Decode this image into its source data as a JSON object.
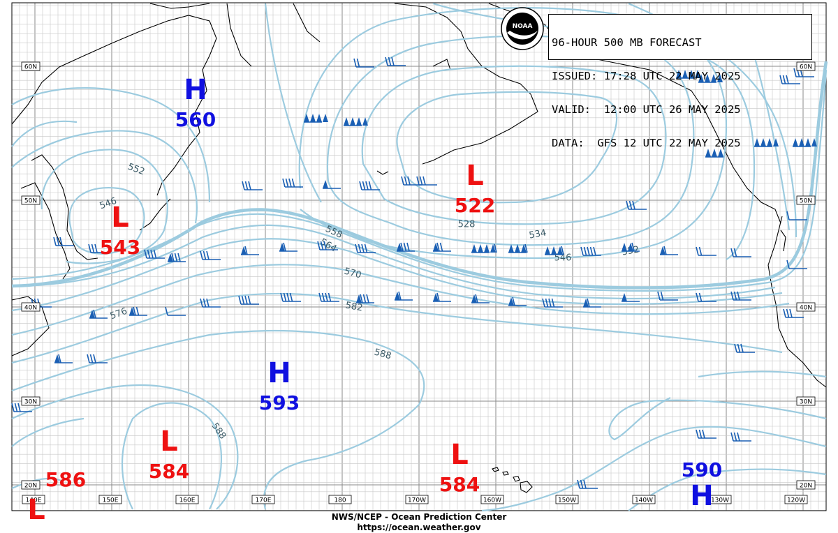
{
  "title_box": {
    "line1": "96-HOUR 500 MB FORECAST",
    "line2": "ISSUED: 17:28 UTC 22 MAY 2025",
    "line3": "VALID:  12:00 UTC 26 MAY 2025",
    "line4": "DATA:  GFS 12 UTC 22 MAY 2025"
  },
  "logo": {
    "text": "NOAA",
    "icon": "noaa-logo-icon"
  },
  "footer": {
    "line1": "NWS/NCEP - Ocean Prediction Center",
    "line2": "https://ocean.weather.gov"
  },
  "lat_labels": [
    "60N",
    "50N",
    "40N",
    "30N",
    "20N"
  ],
  "lon_labels": [
    "140E",
    "150E",
    "160E",
    "170E",
    "180",
    "170W",
    "160W",
    "150W",
    "140W",
    "130W",
    "120W"
  ],
  "contour_labels": [
    "552",
    "546",
    "558",
    "564",
    "570",
    "576",
    "582",
    "588",
    "588",
    "528",
    "534",
    "546",
    "552"
  ],
  "systems": [
    {
      "type": "H",
      "value": "560",
      "color": "#1010e0"
    },
    {
      "type": "L",
      "value": "543",
      "color": "#ee1111"
    },
    {
      "type": "L",
      "value": "522",
      "color": "#ee1111"
    },
    {
      "type": "H",
      "value": "593",
      "color": "#1010e0"
    },
    {
      "type": "L",
      "value": "584",
      "color": "#ee1111"
    },
    {
      "type": "L",
      "value": "584",
      "color": "#ee1111"
    },
    {
      "type": "H",
      "value": "590",
      "color": "#1010e0"
    },
    {
      "type": "L",
      "value": "586",
      "color": "#ee1111"
    }
  ],
  "colors": {
    "contour": "#9ccbdf",
    "wind_barb": "#1a5fb4",
    "grid": "#c8c8c8",
    "coast": "#000000"
  }
}
